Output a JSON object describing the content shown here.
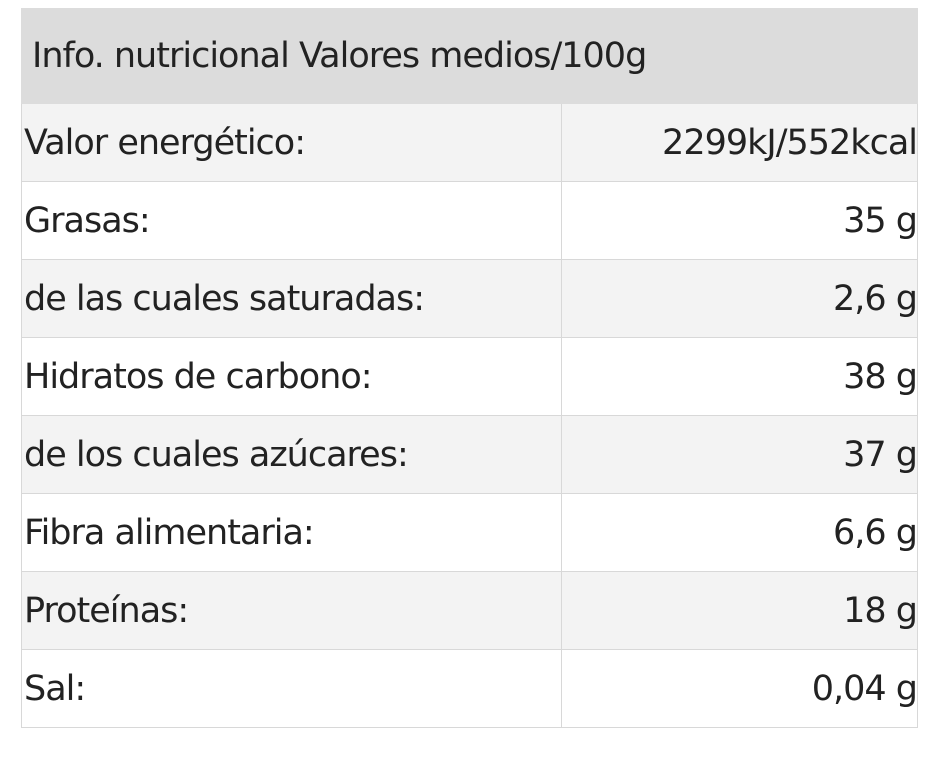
{
  "table": {
    "header": "Info. nutricional Valores medios/100g",
    "rows": [
      [
        "Valor energético:",
        "2299kJ/552kcal"
      ],
      [
        "Grasas:",
        "35 g"
      ],
      [
        "de las cuales saturadas:",
        "2,6 g"
      ],
      [
        "Hidratos de carbono:",
        "38 g"
      ],
      [
        "de los cuales azúcares:",
        "37 g"
      ],
      [
        "Fibra alimentaria:",
        "6,6 g"
      ],
      [
        "Proteínas:",
        "18 g"
      ],
      [
        "Sal:",
        "0,04 g"
      ]
    ]
  }
}
